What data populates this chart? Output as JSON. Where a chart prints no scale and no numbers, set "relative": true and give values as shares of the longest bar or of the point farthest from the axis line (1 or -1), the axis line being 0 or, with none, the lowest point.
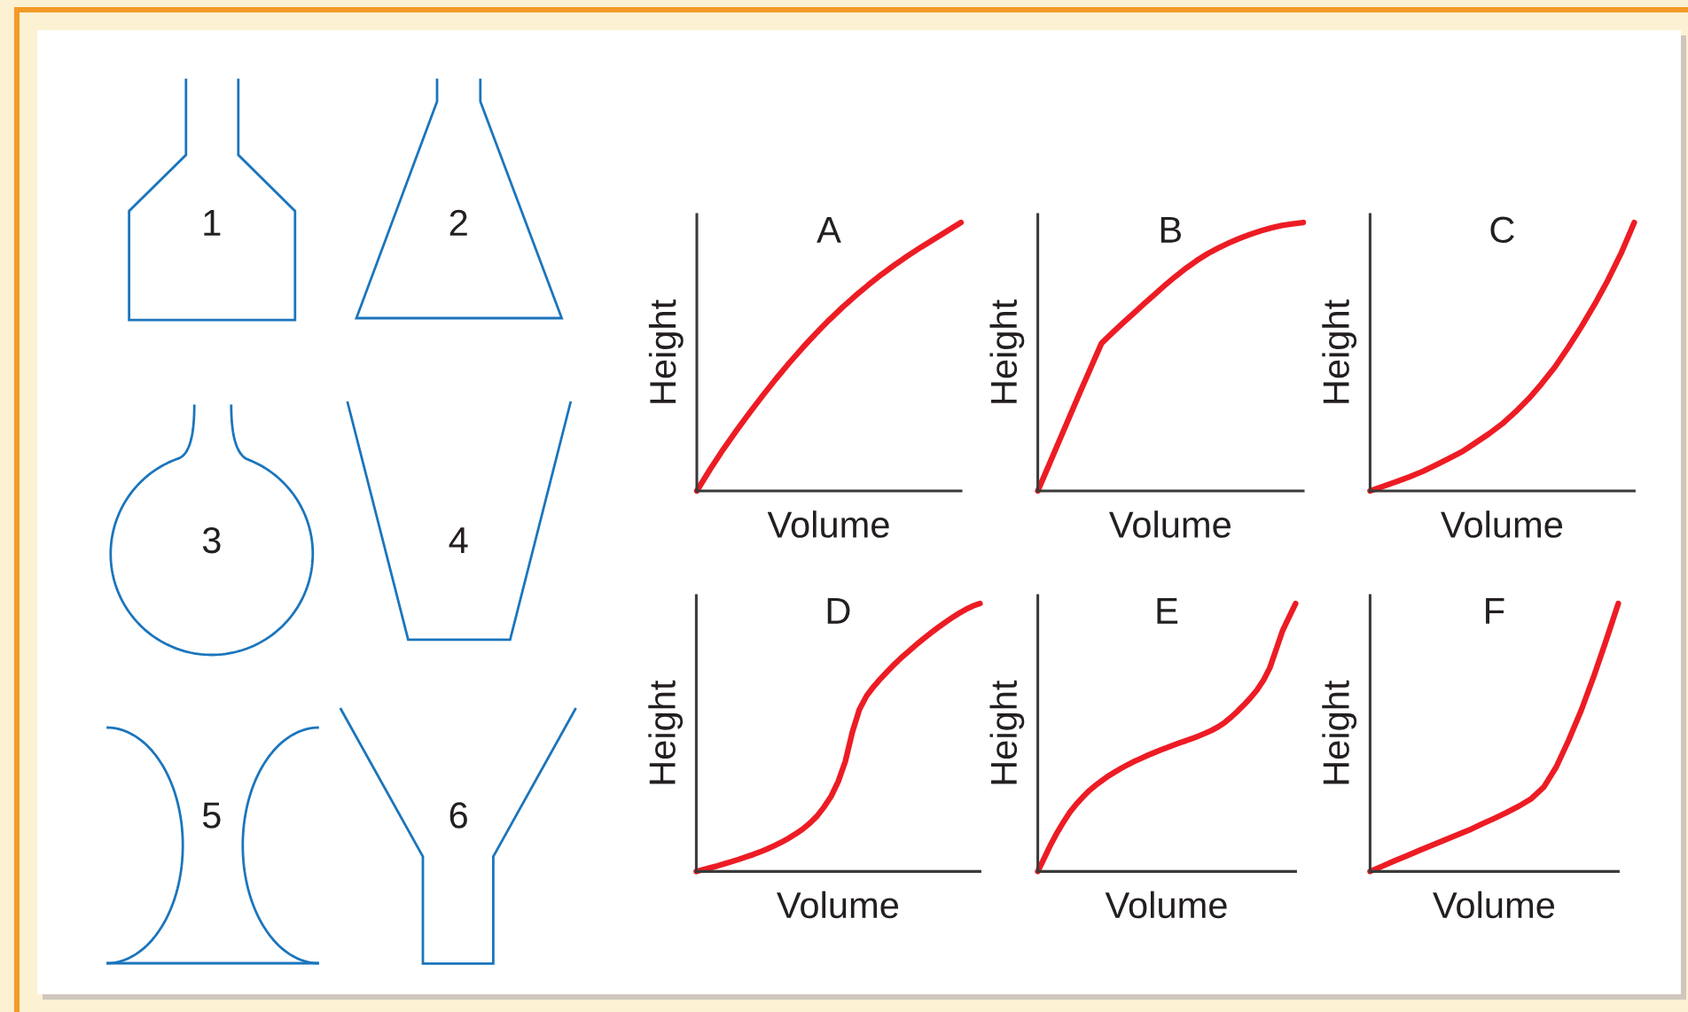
{
  "chart_data": [
    {
      "type": "other",
      "annotations": [
        "1",
        "2",
        "3",
        "4",
        "5",
        "6"
      ]
    },
    {
      "type": "line",
      "title": "A",
      "xlabel": "Volume",
      "ylabel": "Height",
      "relative": true,
      "tick_labels": false,
      "categories": [
        null,
        null,
        null,
        null,
        null,
        null,
        null,
        null,
        null,
        null,
        null,
        null,
        null,
        null,
        null,
        null,
        null,
        null,
        null,
        null,
        null
      ],
      "series": [
        {
          "color": "#ed1c24",
          "values": [
            0,
            0.08,
            0.155,
            0.225,
            0.292,
            0.356,
            0.418,
            0.477,
            0.533,
            0.586,
            0.636,
            0.683,
            0.727,
            0.768,
            0.807,
            0.843,
            0.877,
            0.909,
            0.939,
            0.97,
            1.0
          ]
        }
      ]
    },
    {
      "type": "line",
      "title": "B",
      "xlabel": "Volume",
      "ylabel": "Height",
      "relative": true,
      "tick_labels": false,
      "categories": [
        null,
        null,
        null,
        null,
        null,
        null,
        null,
        null,
        null,
        null,
        null,
        null,
        null,
        null,
        null,
        null,
        null,
        null,
        null,
        null,
        null,
        null,
        null,
        null,
        null,
        null
      ],
      "series": [
        {
          "color": "#ed1c24",
          "values": [
            0,
            0.092,
            0.185,
            0.277,
            0.37,
            0.46,
            0.55,
            0.588,
            0.625,
            0.661,
            0.697,
            0.732,
            0.767,
            0.8,
            0.831,
            0.859,
            0.884,
            0.905,
            0.924,
            0.941,
            0.956,
            0.969,
            0.98,
            0.989,
            0.995,
            1.0
          ]
        }
      ]
    },
    {
      "type": "line",
      "title": "C",
      "xlabel": "Volume",
      "ylabel": "Height",
      "relative": true,
      "tick_labels": false,
      "categories": [
        null,
        null,
        null,
        null,
        null,
        null,
        null,
        null,
        null,
        null,
        null,
        null,
        null,
        null,
        null,
        null,
        null,
        null,
        null,
        null,
        null
      ],
      "series": [
        {
          "color": "#ed1c24",
          "values": [
            0,
            0.017,
            0.035,
            0.053,
            0.073,
            0.097,
            0.122,
            0.147,
            0.18,
            0.213,
            0.25,
            0.294,
            0.343,
            0.4,
            0.462,
            0.535,
            0.612,
            0.695,
            0.785,
            0.885,
            1.0
          ]
        }
      ]
    },
    {
      "type": "line",
      "title": "D",
      "xlabel": "Volume",
      "ylabel": "Height",
      "relative": true,
      "tick_labels": false,
      "categories": [
        null,
        null,
        null,
        null,
        null,
        null,
        null,
        null,
        null,
        null,
        null,
        null,
        null,
        null,
        null,
        null,
        null,
        null,
        null,
        null,
        null,
        null,
        null,
        null,
        null,
        null,
        null,
        null,
        null,
        null,
        null,
        null,
        null,
        null,
        null,
        null,
        null,
        null,
        null,
        null,
        null
      ],
      "series": [
        {
          "color": "#ed1c24",
          "values": [
            0,
            0.007,
            0.014,
            0.021,
            0.029,
            0.037,
            0.045,
            0.054,
            0.063,
            0.073,
            0.084,
            0.096,
            0.109,
            0.124,
            0.14,
            0.158,
            0.18,
            0.206,
            0.24,
            0.28,
            0.335,
            0.41,
            0.52,
            0.605,
            0.655,
            0.69,
            0.72,
            0.748,
            0.775,
            0.8,
            0.823,
            0.846,
            0.868,
            0.889,
            0.909,
            0.928,
            0.946,
            0.963,
            0.978,
            0.991,
            1.0
          ]
        }
      ]
    },
    {
      "type": "line",
      "title": "E",
      "xlabel": "Volume",
      "ylabel": "Height",
      "relative": true,
      "tick_labels": false,
      "categories": [
        null,
        null,
        null,
        null,
        null,
        null,
        null,
        null,
        null,
        null,
        null,
        null,
        null,
        null,
        null,
        null,
        null,
        null,
        null,
        null,
        null,
        null,
        null,
        null,
        null,
        null,
        null,
        null,
        null,
        null,
        null,
        null,
        null,
        null,
        null,
        null,
        null,
        null,
        null,
        null,
        null
      ],
      "series": [
        {
          "color": "#ed1c24",
          "values": [
            0,
            0.05,
            0.1,
            0.145,
            0.185,
            0.222,
            0.252,
            0.278,
            0.302,
            0.322,
            0.34,
            0.357,
            0.372,
            0.386,
            0.399,
            0.411,
            0.422,
            0.433,
            0.443,
            0.453,
            0.462,
            0.471,
            0.48,
            0.488,
            0.497,
            0.506,
            0.516,
            0.527,
            0.54,
            0.556,
            0.576,
            0.598,
            0.622,
            0.648,
            0.677,
            0.713,
            0.76,
            0.83,
            0.9,
            0.95,
            1.0
          ]
        }
      ]
    },
    {
      "type": "line",
      "title": "F",
      "xlabel": "Volume",
      "ylabel": "Height",
      "relative": true,
      "tick_labels": false,
      "categories": [
        null,
        null,
        null,
        null,
        null,
        null,
        null,
        null,
        null,
        null,
        null,
        null,
        null,
        null,
        null,
        null,
        null,
        null,
        null,
        null,
        null
      ],
      "series": [
        {
          "color": "#ed1c24",
          "values": [
            0,
            0.02,
            0.04,
            0.059,
            0.079,
            0.098,
            0.117,
            0.136,
            0.155,
            0.177,
            0.198,
            0.22,
            0.244,
            0.272,
            0.315,
            0.39,
            0.49,
            0.6,
            0.725,
            0.86,
            1.0
          ]
        }
      ]
    }
  ]
}
